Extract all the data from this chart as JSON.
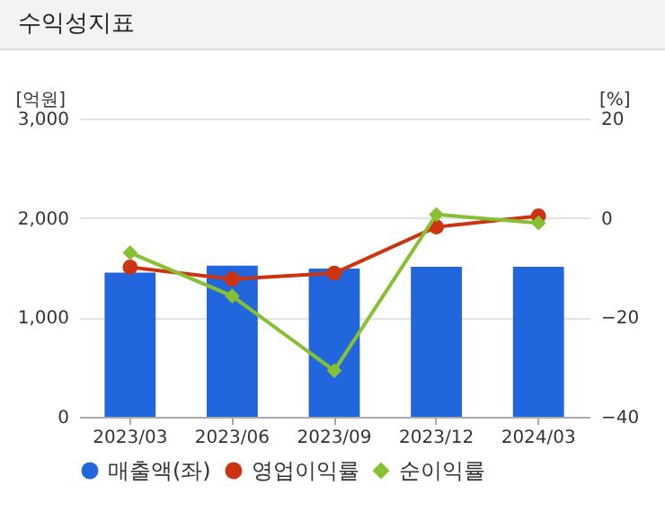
{
  "chart_data": {
    "type": "bar",
    "title": "수익성지표",
    "categories": [
      "2023/03",
      "2023/06",
      "2023/09",
      "2023/12",
      "2024/03"
    ],
    "series": [
      {
        "name": "매출액(좌)",
        "color": "#2266dd",
        "values": [
          1450,
          1520,
          1490,
          1510,
          1510
        ]
      },
      {
        "name": "영업이익률",
        "type": "line",
        "axis": "y2",
        "color": "#cc3311",
        "marker": "circle",
        "values": [
          -9.9,
          -12.3,
          -11.1,
          -1.8,
          0.4
        ]
      },
      {
        "name": "순이익률",
        "type": "line",
        "axis": "y2",
        "color": "#88c034",
        "marker": "diamond",
        "values": [
          -7.0,
          -15.7,
          -30.7,
          0.7,
          -1.0
        ]
      }
    ],
    "ylabel": "[억원]",
    "y2label": "[%]",
    "ylim": [
      0,
      3000
    ],
    "yticks": [
      0,
      {
        "value": 1000,
        "label": "1,000"
      },
      {
        "value": 2000,
        "label": "2,000"
      },
      {
        "value": 3000,
        "label": "3,000"
      }
    ],
    "y2lim": [
      -40,
      20
    ],
    "y2ticks": [
      -40,
      -20,
      0,
      20
    ],
    "grid": "y",
    "legend": "bottom"
  }
}
